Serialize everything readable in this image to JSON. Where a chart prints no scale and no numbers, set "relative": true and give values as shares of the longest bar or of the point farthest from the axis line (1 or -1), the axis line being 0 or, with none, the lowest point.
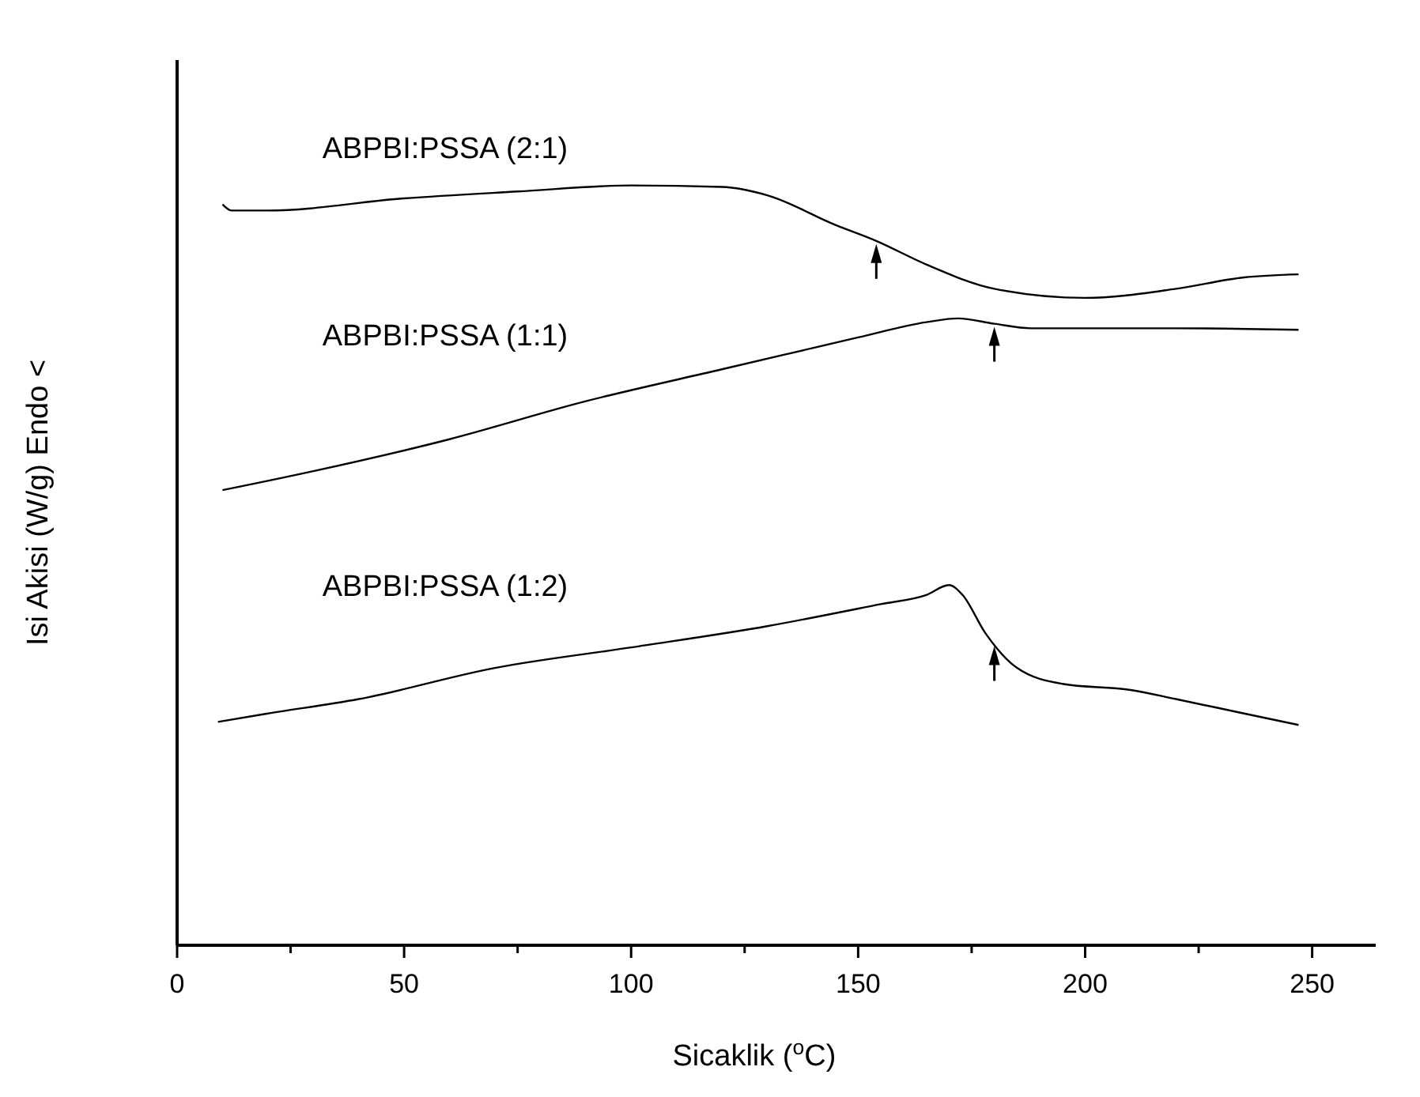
{
  "chart_data": {
    "type": "line",
    "relative": true,
    "xlabel": "Sicaklik ($^{o}$C)",
    "ylabel": "Isi Akisi (W/g) Endo <",
    "xlim": [
      0,
      264
    ],
    "xticks": [
      0,
      {
        "value": 25,
        "label": null
      },
      50,
      {
        "value": 75,
        "label": null
      },
      100,
      {
        "value": 125,
        "label": null
      },
      150,
      {
        "value": 175,
        "label": null
      },
      200,
      {
        "value": 225,
        "label": null
      },
      250
    ],
    "grid": false,
    "marker": "none",
    "line_style": "solid",
    "series": [
      {
        "name": "ABPBI:PSSA (2:1)",
        "color": "#000000",
        "x": [
          10,
          12,
          20,
          50,
          75,
          100,
          120,
          130,
          145,
          154,
          165,
          180,
          200,
          220,
          235,
          247
        ],
        "values": [
          0.975,
          0.967,
          0.967,
          0.983,
          0.992,
          1.0,
          0.998,
          0.987,
          0.948,
          0.927,
          0.896,
          0.864,
          0.852,
          0.864,
          0.879,
          0.883
        ]
      },
      {
        "name": "ABPBI:PSSA (1:1)",
        "color": "#000000",
        "x": [
          10,
          30,
          60,
          90,
          120,
          135,
          150,
          165,
          172,
          180,
          188,
          220,
          247
        ],
        "values": [
          0.599,
          0.624,
          0.666,
          0.716,
          0.758,
          0.779,
          0.8,
          0.82,
          0.825,
          0.818,
          0.812,
          0.812,
          0.81
        ]
      },
      {
        "name": "ABPBI:PSSA (1:2)",
        "color": "#000000",
        "x": [
          9,
          20,
          40,
          70,
          100,
          130,
          155,
          165,
          170,
          173,
          178,
          185,
          195,
          210,
          220,
          235,
          247
        ],
        "values": [
          0.294,
          0.305,
          0.324,
          0.365,
          0.392,
          0.42,
          0.449,
          0.461,
          0.474,
          0.461,
          0.411,
          0.365,
          0.344,
          0.336,
          0.324,
          0.305,
          0.29
        ]
      }
    ]
  }
}
